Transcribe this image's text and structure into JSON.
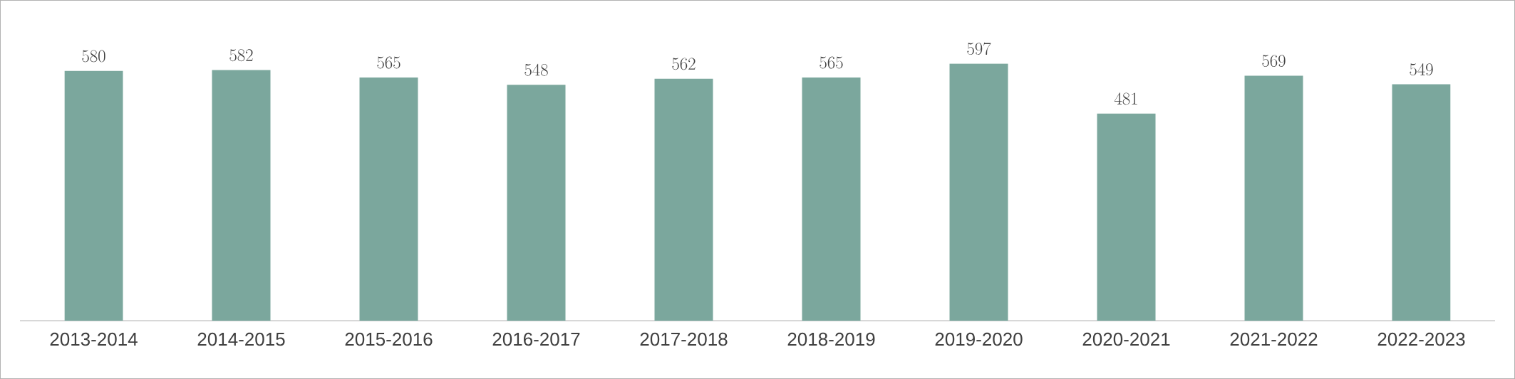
{
  "chart_data": {
    "type": "bar",
    "categories": [
      "2013-2014",
      "2014-2015",
      "2015-2016",
      "2016-2017",
      "2017-2018",
      "2018-2019",
      "2019-2020",
      "2020-2021",
      "2021-2022",
      "2022-2023"
    ],
    "values": [
      580,
      582,
      565,
      548,
      562,
      565,
      597,
      481,
      569,
      549
    ],
    "color": "#7ba79d",
    "data_labels": true
  }
}
